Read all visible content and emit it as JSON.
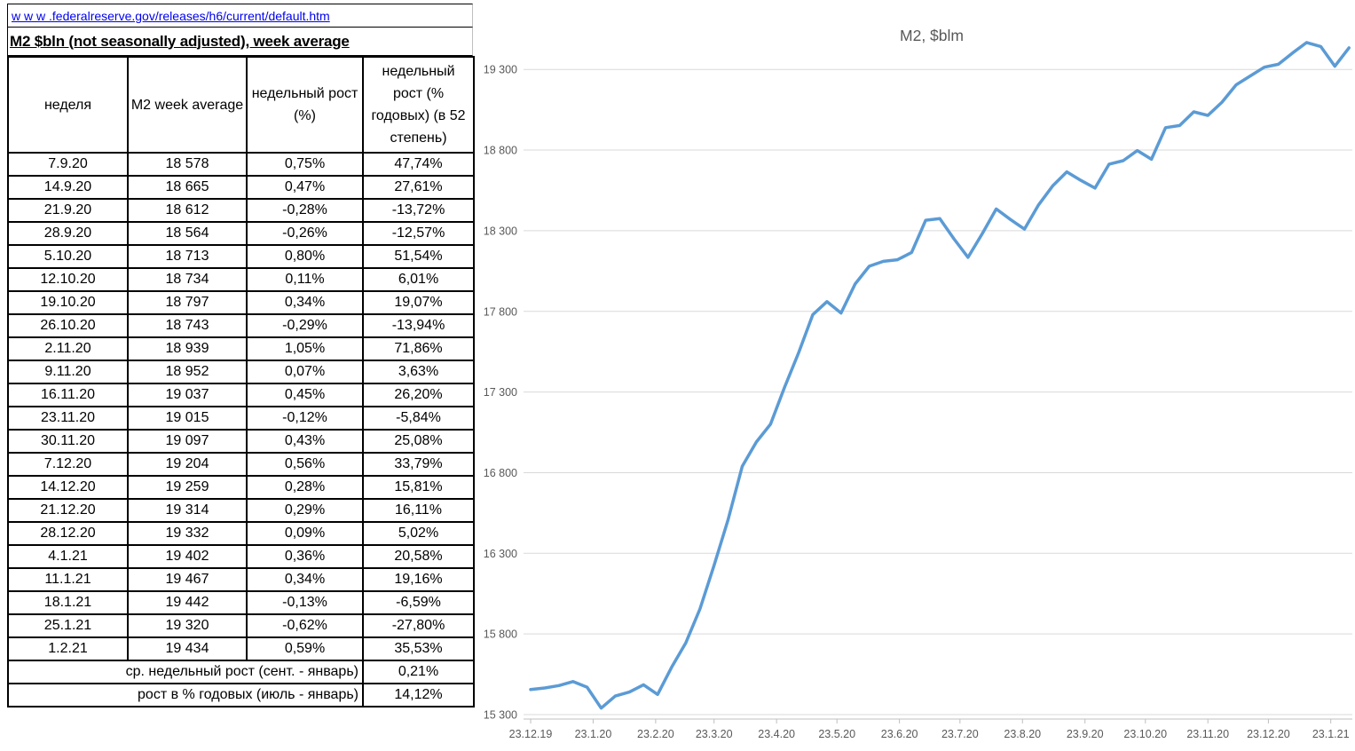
{
  "link": {
    "text": "w w w .federalreserve.gov/releases/h6/current/default.htm"
  },
  "title": "M2 $bln (not seasonally adjusted), week average",
  "table": {
    "headers": [
      "неделя",
      "M2 week average",
      "недельный рост (%)",
      "недельный рост (% годовых) (в 52 степень)"
    ],
    "rows": [
      [
        "7.9.20",
        "18 578",
        "0,75%",
        "47,74%"
      ],
      [
        "14.9.20",
        "18 665",
        "0,47%",
        "27,61%"
      ],
      [
        "21.9.20",
        "18 612",
        "-0,28%",
        "-13,72%"
      ],
      [
        "28.9.20",
        "18 564",
        "-0,26%",
        "-12,57%"
      ],
      [
        "5.10.20",
        "18 713",
        "0,80%",
        "51,54%"
      ],
      [
        "12.10.20",
        "18 734",
        "0,11%",
        "6,01%"
      ],
      [
        "19.10.20",
        "18 797",
        "0,34%",
        "19,07%"
      ],
      [
        "26.10.20",
        "18 743",
        "-0,29%",
        "-13,94%"
      ],
      [
        "2.11.20",
        "18 939",
        "1,05%",
        "71,86%"
      ],
      [
        "9.11.20",
        "18 952",
        "0,07%",
        "3,63%"
      ],
      [
        "16.11.20",
        "19 037",
        "0,45%",
        "26,20%"
      ],
      [
        "23.11.20",
        "19 015",
        "-0,12%",
        "-5,84%"
      ],
      [
        "30.11.20",
        "19 097",
        "0,43%",
        "25,08%"
      ],
      [
        "7.12.20",
        "19 204",
        "0,56%",
        "33,79%"
      ],
      [
        "14.12.20",
        "19 259",
        "0,28%",
        "15,81%"
      ],
      [
        "21.12.20",
        "19 314",
        "0,29%",
        "16,11%"
      ],
      [
        "28.12.20",
        "19 332",
        "0,09%",
        "5,02%"
      ],
      [
        "4.1.21",
        "19 402",
        "0,36%",
        "20,58%"
      ],
      [
        "11.1.21",
        "19 467",
        "0,34%",
        "19,16%"
      ],
      [
        "18.1.21",
        "19 442",
        "-0,13%",
        "-6,59%"
      ],
      [
        "25.1.21",
        "19 320",
        "-0,62%",
        "-27,80%"
      ],
      [
        "1.2.21",
        "19 434",
        "0,59%",
        "35,53%"
      ]
    ],
    "footer": [
      {
        "label": "ср. недельный рост (сент. - январь)",
        "value": "0,21%"
      },
      {
        "label": "рост в % годовых (июль - январь)",
        "value": "14,12%"
      }
    ]
  },
  "chart_data": {
    "type": "line",
    "title": "M2, $blm",
    "grid": true,
    "legend": false,
    "line_color": "#5B9BD5",
    "grid_color": "#D9D9D9",
    "axis_color": "#BFBFBF",
    "text_color": "#595959",
    "ylim": [
      15300,
      19550
    ],
    "y_ticks": [
      15300,
      15800,
      16300,
      16800,
      17300,
      17800,
      18300,
      18800,
      19300
    ],
    "x_tick_labels": [
      "23.12.19",
      "23.1.20",
      "23.2.20",
      "23.3.20",
      "23.4.20",
      "23.5.20",
      "23.6.20",
      "23.7.20",
      "23.8.20",
      "23.9.20",
      "23.10.20",
      "23.11.20",
      "23.12.20",
      "23.1.21"
    ],
    "x_tick_week_index": [
      0,
      4.43,
      8.86,
      13,
      17.43,
      21.71,
      26.14,
      30.43,
      34.86,
      39.29,
      43.57,
      48,
      52.29,
      56.71
    ],
    "series": [
      {
        "name": "M2 week average, $bln",
        "x_dates": [
          "23.12.19",
          "30.12.19",
          "6.1.20",
          "13.1.20",
          "20.1.20",
          "27.1.20",
          "3.2.20",
          "10.2.20",
          "17.2.20",
          "24.2.20",
          "2.3.20",
          "9.3.20",
          "16.3.20",
          "23.3.20",
          "30.3.20",
          "6.4.20",
          "13.4.20",
          "20.4.20",
          "27.4.20",
          "4.5.20",
          "11.5.20",
          "18.5.20",
          "25.5.20",
          "1.6.20",
          "8.6.20",
          "15.6.20",
          "22.6.20",
          "29.6.20",
          "6.7.20",
          "13.7.20",
          "20.7.20",
          "27.7.20",
          "3.8.20",
          "10.8.20",
          "17.8.20",
          "24.8.20",
          "31.8.20",
          "7.9.20",
          "14.9.20",
          "21.9.20",
          "28.9.20",
          "5.10.20",
          "12.10.20",
          "19.10.20",
          "26.10.20",
          "2.11.20",
          "9.11.20",
          "16.11.20",
          "23.11.20",
          "30.11.20",
          "7.12.20",
          "14.12.20",
          "21.12.20",
          "28.12.20",
          "4.1.21",
          "11.1.21",
          "18.1.21",
          "25.1.21",
          "1.2.21"
        ],
        "values": [
          15455,
          15465,
          15480,
          15505,
          15470,
          15340,
          15415,
          15440,
          15485,
          15425,
          15595,
          15745,
          15955,
          16225,
          16510,
          16840,
          16990,
          17100,
          17330,
          17545,
          17780,
          17860,
          17790,
          17970,
          18080,
          18110,
          18120,
          18165,
          18365,
          18375,
          18250,
          18135,
          18280,
          18435,
          18370,
          18310,
          18460,
          18578,
          18665,
          18612,
          18564,
          18713,
          18734,
          18797,
          18743,
          18939,
          18952,
          19037,
          19015,
          19097,
          19204,
          19259,
          19314,
          19332,
          19402,
          19467,
          19442,
          19320,
          19434
        ]
      }
    ]
  }
}
